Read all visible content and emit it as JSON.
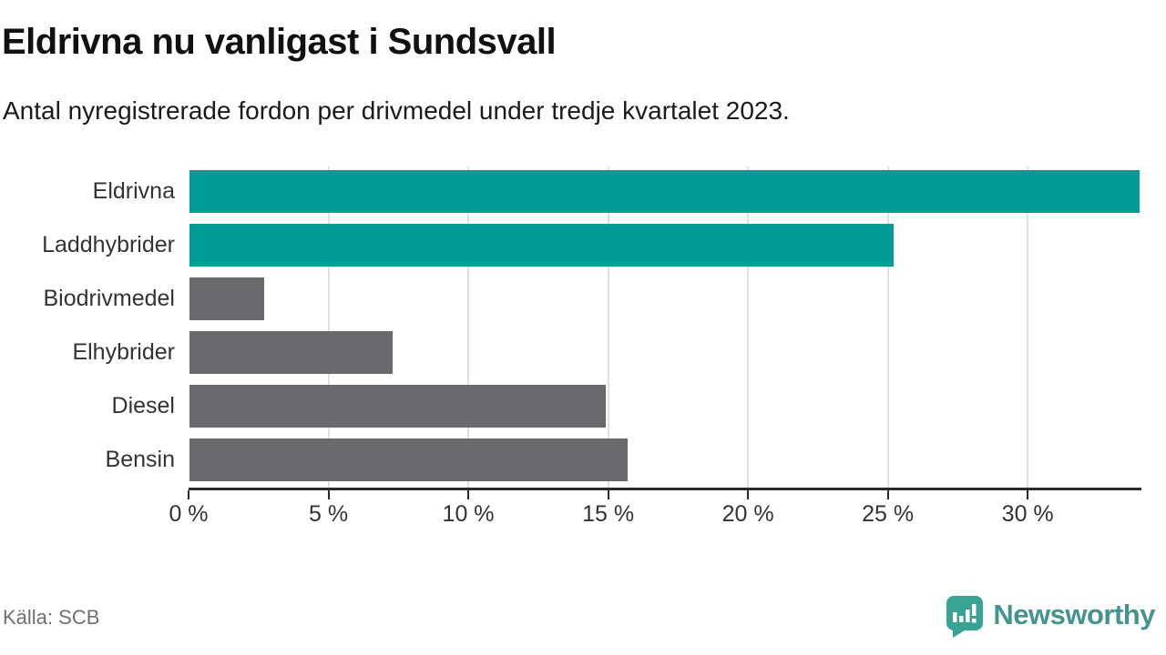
{
  "header": {
    "title": "Eldrivna nu vanligast i Sundsvall",
    "subtitle": "Antal nyregistrerade fordon per drivmedel under tredje kvartalet 2023."
  },
  "footer": {
    "source": "Källa: SCB",
    "brand_name": "Newsworthy"
  },
  "colors": {
    "highlight_bar": "#009c95",
    "default_bar": "#6a6a6e",
    "gridline": "#e1e1e1",
    "axis": "#2b2b2b",
    "tick_text": "#333333",
    "label_text": "#333333",
    "source_text": "#6c6f78",
    "brand_text": "#45938d",
    "brand_icon": "#38a293"
  },
  "chart_data": {
    "type": "bar",
    "orientation": "horizontal",
    "title": "Eldrivna nu vanligast i Sundsvall",
    "subtitle": "Antal nyregistrerade fordon per drivmedel under tredje kvartalet 2023.",
    "categories": [
      "Eldrivna",
      "Laddhybrider",
      "Biodrivmedel",
      "Elhybrider",
      "Diesel",
      "Bensin"
    ],
    "values": [
      34.0,
      25.2,
      2.7,
      7.3,
      14.9,
      15.7
    ],
    "bar_roles": [
      "highlight",
      "highlight",
      "default",
      "default",
      "default",
      "default"
    ],
    "unit": "%",
    "xlim": [
      0,
      34.0
    ],
    "xticks": [
      0,
      5,
      10,
      15,
      20,
      25,
      30
    ],
    "xtick_labels": [
      "0 %",
      "5 %",
      "10 %",
      "15 %",
      "20 %",
      "25 %",
      "30 %"
    ],
    "xlabel": "",
    "ylabel": "",
    "grid": true,
    "legend": false
  }
}
